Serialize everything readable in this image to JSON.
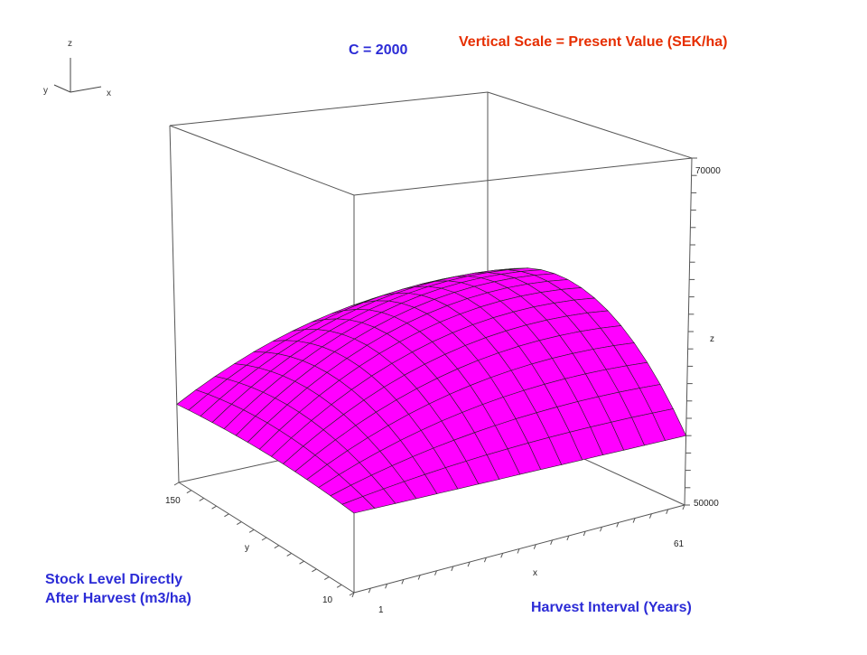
{
  "header": {
    "c_label": "C = 2000",
    "scale_label": "Vertical Scale = Present Value (SEK/ha)"
  },
  "axis_titles": {
    "y_line1": "Stock Level Directly",
    "y_line2": "After Harvest (m3/ha)",
    "x": "Harvest Interval (Years)"
  },
  "orientation_gizmo": {
    "z": "z",
    "y": "y",
    "x": "x"
  },
  "colors": {
    "title_blue": "#2b2bd6",
    "title_red": "#e62e00",
    "surface_top": "#ff00ff",
    "surface_under": "#ff7700",
    "frame": "#555555"
  },
  "chart_data": {
    "type": "surface",
    "x_axis": {
      "name": "x",
      "ticks": [
        "1",
        "61"
      ],
      "range": [
        1,
        61
      ]
    },
    "y_axis": {
      "name": "y",
      "ticks": [
        "150",
        "10"
      ],
      "range": [
        10,
        150
      ]
    },
    "z_axis": {
      "name": "z",
      "ticks": [
        "70000",
        "50000"
      ],
      "range": [
        50000,
        70000
      ]
    },
    "surface": {
      "x_steps": 16,
      "y_steps": 15,
      "z_min_estimate": 54000,
      "z_max_estimate": 60500,
      "peak_x_estimate": 53,
      "peak_y_estimate": 58
    }
  }
}
